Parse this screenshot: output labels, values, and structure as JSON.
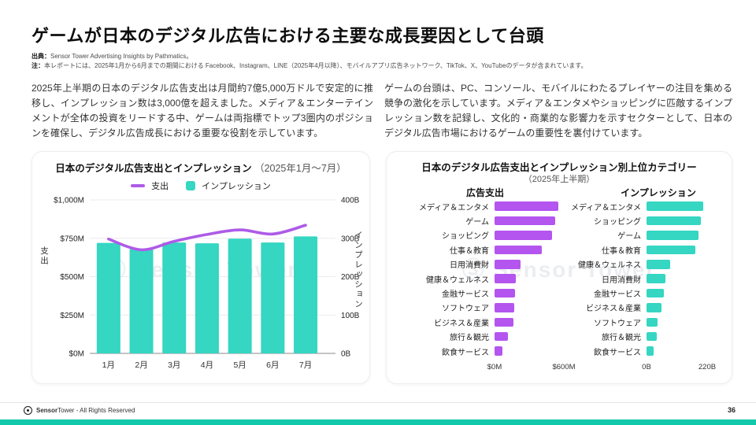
{
  "page": {
    "title": "ゲームが日本のデジタル広告における主要な成長要因として台頭",
    "source_label": "出典：",
    "source_text": "Sensor Tower Advertising Insights by Pathmatics。",
    "note_label": "注：",
    "note_text": "本レポートには、2025年1月から6月までの期間における Facebook、Instagram、LINE（2025年4月以降）、モバイルアプリ広告ネットワーク、TikTok、X、YouTubeのデータが含まれています。",
    "paragraph_left": "2025年上半期の日本のデジタル広告支出は月間約7億5,000万ドルで安定的に推移し、インプレッション数は3,000億を超えました。メディア＆エンターテインメントが全体の投資をリードする中、ゲームは両指標でトップ3圏内のポジションを確保し、デジタル広告成長における重要な役割を示しています。",
    "paragraph_right": "ゲームの台頭は、PC、コンソール、モバイルにわたるプレイヤーの注目を集める競争の激化を示しています。メディア＆エンタメやショッピングに匹敵するインプレッション数を記録し、文化的・商業的な影響力を示すセクターとして、日本のデジタル広告市場におけるゲームの重要性を裏付けています。",
    "watermark": "Ⓢ Sensor Tower",
    "footer": {
      "brand_bold": "Sensor",
      "brand_regular": "Tower",
      "rights": " - All Rights Reserved",
      "page_number": "36"
    }
  },
  "colors": {
    "teal": "#35d6c2",
    "purple": "#b455ef",
    "line_purple": "#ae5be8",
    "accent_strip": "#12c9ab",
    "grid": "#ebebf0",
    "axis": "#8a8a92"
  },
  "chart_data": [
    {
      "type": "combo_bar_line",
      "title": "日本のデジタル広告支出とインプレッション",
      "subtitle": "（2025年1月〜7月）",
      "categories": [
        "1月",
        "2月",
        "3月",
        "4月",
        "5月",
        "6月",
        "7月"
      ],
      "series": [
        {
          "name": "支出",
          "type": "line",
          "axis": "left",
          "unit": "$M",
          "color": "#ae5be8",
          "values": [
            745,
            675,
            730,
            775,
            805,
            778,
            835
          ]
        },
        {
          "name": "インプレッション",
          "type": "bar",
          "axis": "right",
          "unit": "B",
          "color": "#35d6c2",
          "values": [
            288,
            272,
            289,
            287,
            299,
            289,
            305
          ]
        }
      ],
      "left_axis": {
        "label": "支出",
        "min": 0,
        "max": 1000,
        "ticks": [
          "$0M",
          "$250M",
          "$500M",
          "$750M",
          "$1,000M"
        ]
      },
      "right_axis": {
        "label": "インプレッション",
        "min": 0,
        "max": 400,
        "ticks": [
          "0B",
          "100B",
          "200B",
          "300B",
          "400B"
        ]
      },
      "grid": true,
      "legend_position": "top"
    },
    {
      "type": "bar",
      "title": "日本のデジタル広告支出とインプレッション別上位カテゴリー",
      "subtitle": "（2025年上半期）",
      "panels": [
        {
          "heading": "広告支出",
          "color": "#b455ef",
          "unit": "$M",
          "axis_ticks": [
            "$0M",
            "$600M"
          ],
          "axis_max": 600,
          "categories": [
            "メディア＆エンタメ",
            "ゲーム",
            "ショッピング",
            "仕事＆教育",
            "日用消費財",
            "健康＆ウェルネス",
            "金融サービス",
            "ソフトウェア",
            "ビジネス＆産業",
            "旅行＆観光",
            "飲食サービス"
          ],
          "values": [
            550,
            525,
            500,
            410,
            225,
            185,
            180,
            170,
            160,
            115,
            65
          ]
        },
        {
          "heading": "インプレッション",
          "color": "#35d6c2",
          "unit": "B",
          "axis_ticks": [
            "0B",
            "220B"
          ],
          "axis_max": 220,
          "categories": [
            "メディア＆エンタメ",
            "ショッピング",
            "ゲーム",
            "仕事＆教育",
            "健康＆ウェルネス",
            "日用消費財",
            "金融サービス",
            "ビジネス＆産業",
            "ソフトウェア",
            "旅行＆観光",
            "飲食サービス"
          ],
          "values": [
            205,
            197,
            190,
            176,
            86,
            70,
            64,
            54,
            40,
            37,
            26
          ]
        }
      ]
    }
  ]
}
